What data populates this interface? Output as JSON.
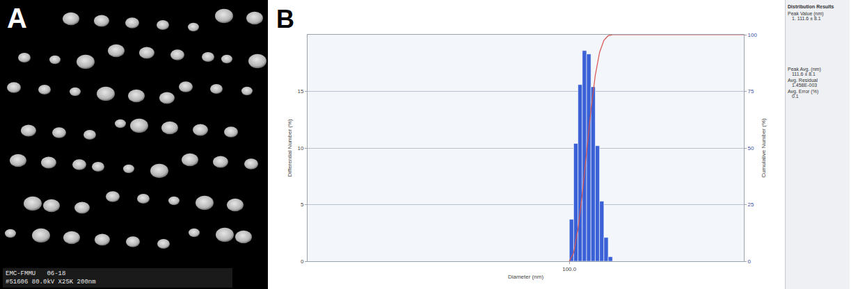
{
  "panel_a": {
    "letter": "A",
    "footer": [
      "EMC-FMMU   06-18",
      "#51606 80.0kV X25K 200nm"
    ]
  },
  "chart_data": {
    "type": "histogram",
    "panel_label": "B",
    "xlabel": "Diameter (nm)",
    "ylabel": "Differential Number (%)",
    "y2label": "Cumulative Number (%)",
    "log": "x",
    "grid": true,
    "bins": [
      100,
      112.1,
      125.6,
      140.8,
      157.8,
      176.8,
      198.2,
      222.1,
      248.9,
      279.0,
      312.6
    ],
    "series": [
      {
        "type": "bar",
        "color": "#3a62d6",
        "values": [
          3.7,
          10.4,
          15.6,
          18.6,
          18.3,
          15.4,
          10.2,
          5.3,
          2.1,
          0.4
        ]
      },
      {
        "type": "line",
        "axis": "y2",
        "color": "#d9534f",
        "x": [
          100,
          112.1,
          125.6,
          140.8,
          157.8,
          176.8,
          198.2,
          222.1,
          248.9,
          279.0,
          312.6,
          10000
        ],
        "values": [
          0,
          3.7,
          14.1,
          29.7,
          48.3,
          66.6,
          82.0,
          92.2,
          97.5,
          99.6,
          100,
          100
        ]
      }
    ],
    "xlim": [
      0.1,
      10000
    ],
    "xticks": [
      {
        "value": 100,
        "label": "100.0"
      }
    ],
    "ylim": [
      0,
      20
    ],
    "yticks": [
      0,
      5,
      10,
      15
    ],
    "y2lim": [
      0,
      100
    ],
    "y2ticks": [
      0,
      25,
      50,
      75,
      100
    ]
  },
  "results_panel": {
    "title": "Distribution Results",
    "items": [
      {
        "key": "Peak Value (nm)",
        "value": "1. 111.6 ± 8.1"
      },
      {
        "key": "Peak Avg. (nm)",
        "value": "111.6 ± 8.1"
      },
      {
        "key": "Avg. Residual",
        "value": "1.458E-003"
      },
      {
        "key": "Avg. Error (%)",
        "value": "0.1"
      }
    ]
  }
}
